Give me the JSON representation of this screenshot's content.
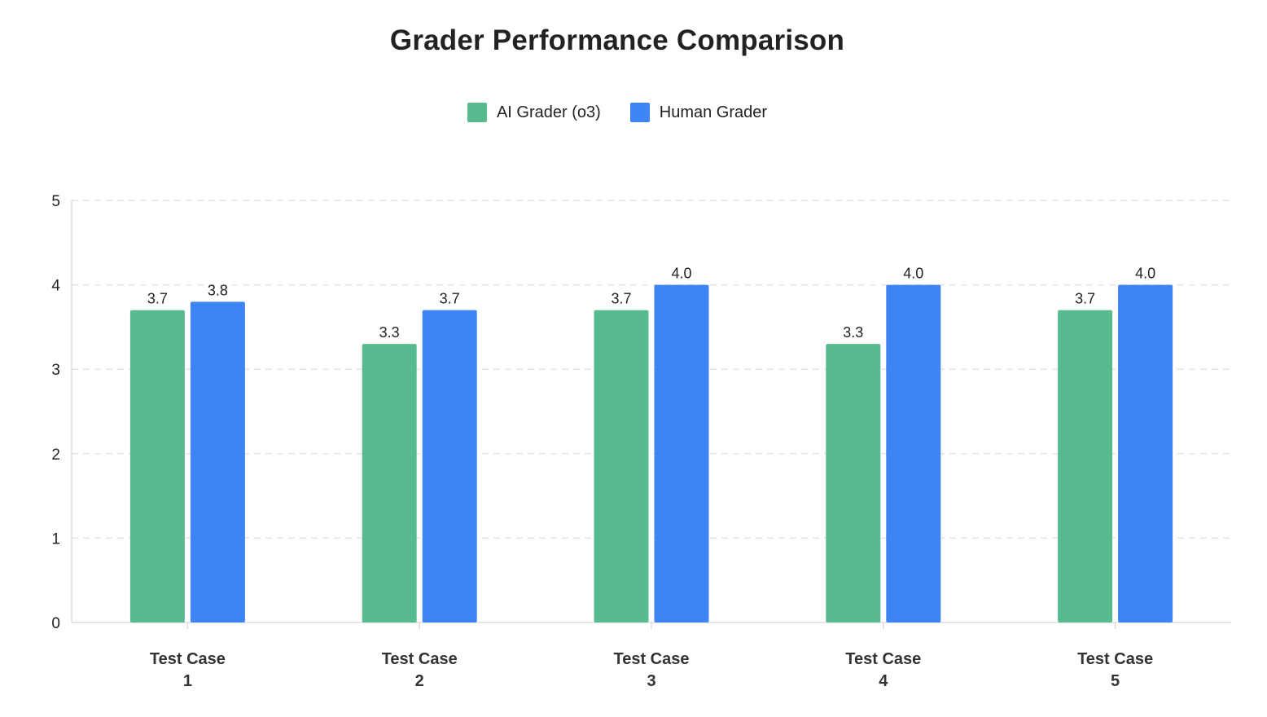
{
  "chart_data": {
    "type": "bar",
    "title": "Grader Performance Comparison",
    "xlabel": "",
    "ylabel": "",
    "ylim": [
      0,
      5
    ],
    "yticks": [
      0,
      1,
      2,
      3,
      4,
      5
    ],
    "grid": "horizontal dashed",
    "legend_position": "top-center",
    "categories": [
      [
        "Test Case",
        "1"
      ],
      [
        "Test Case",
        "2"
      ],
      [
        "Test Case",
        "3"
      ],
      [
        "Test Case",
        "4"
      ],
      [
        "Test Case",
        "5"
      ]
    ],
    "series": [
      {
        "name": "AI Grader (o3)",
        "color": "#57BB8F",
        "values": [
          3.7,
          3.3,
          3.7,
          3.3,
          3.7
        ],
        "labels": [
          "3.7",
          "3.3",
          "3.7",
          "3.3",
          "3.7"
        ]
      },
      {
        "name": "Human Grader",
        "color": "#3E84F5",
        "values": [
          3.8,
          3.7,
          4.0,
          4.0,
          4.0
        ],
        "labels": [
          "3.8",
          "3.7",
          "4.0",
          "4.0",
          "4.0"
        ]
      }
    ]
  }
}
